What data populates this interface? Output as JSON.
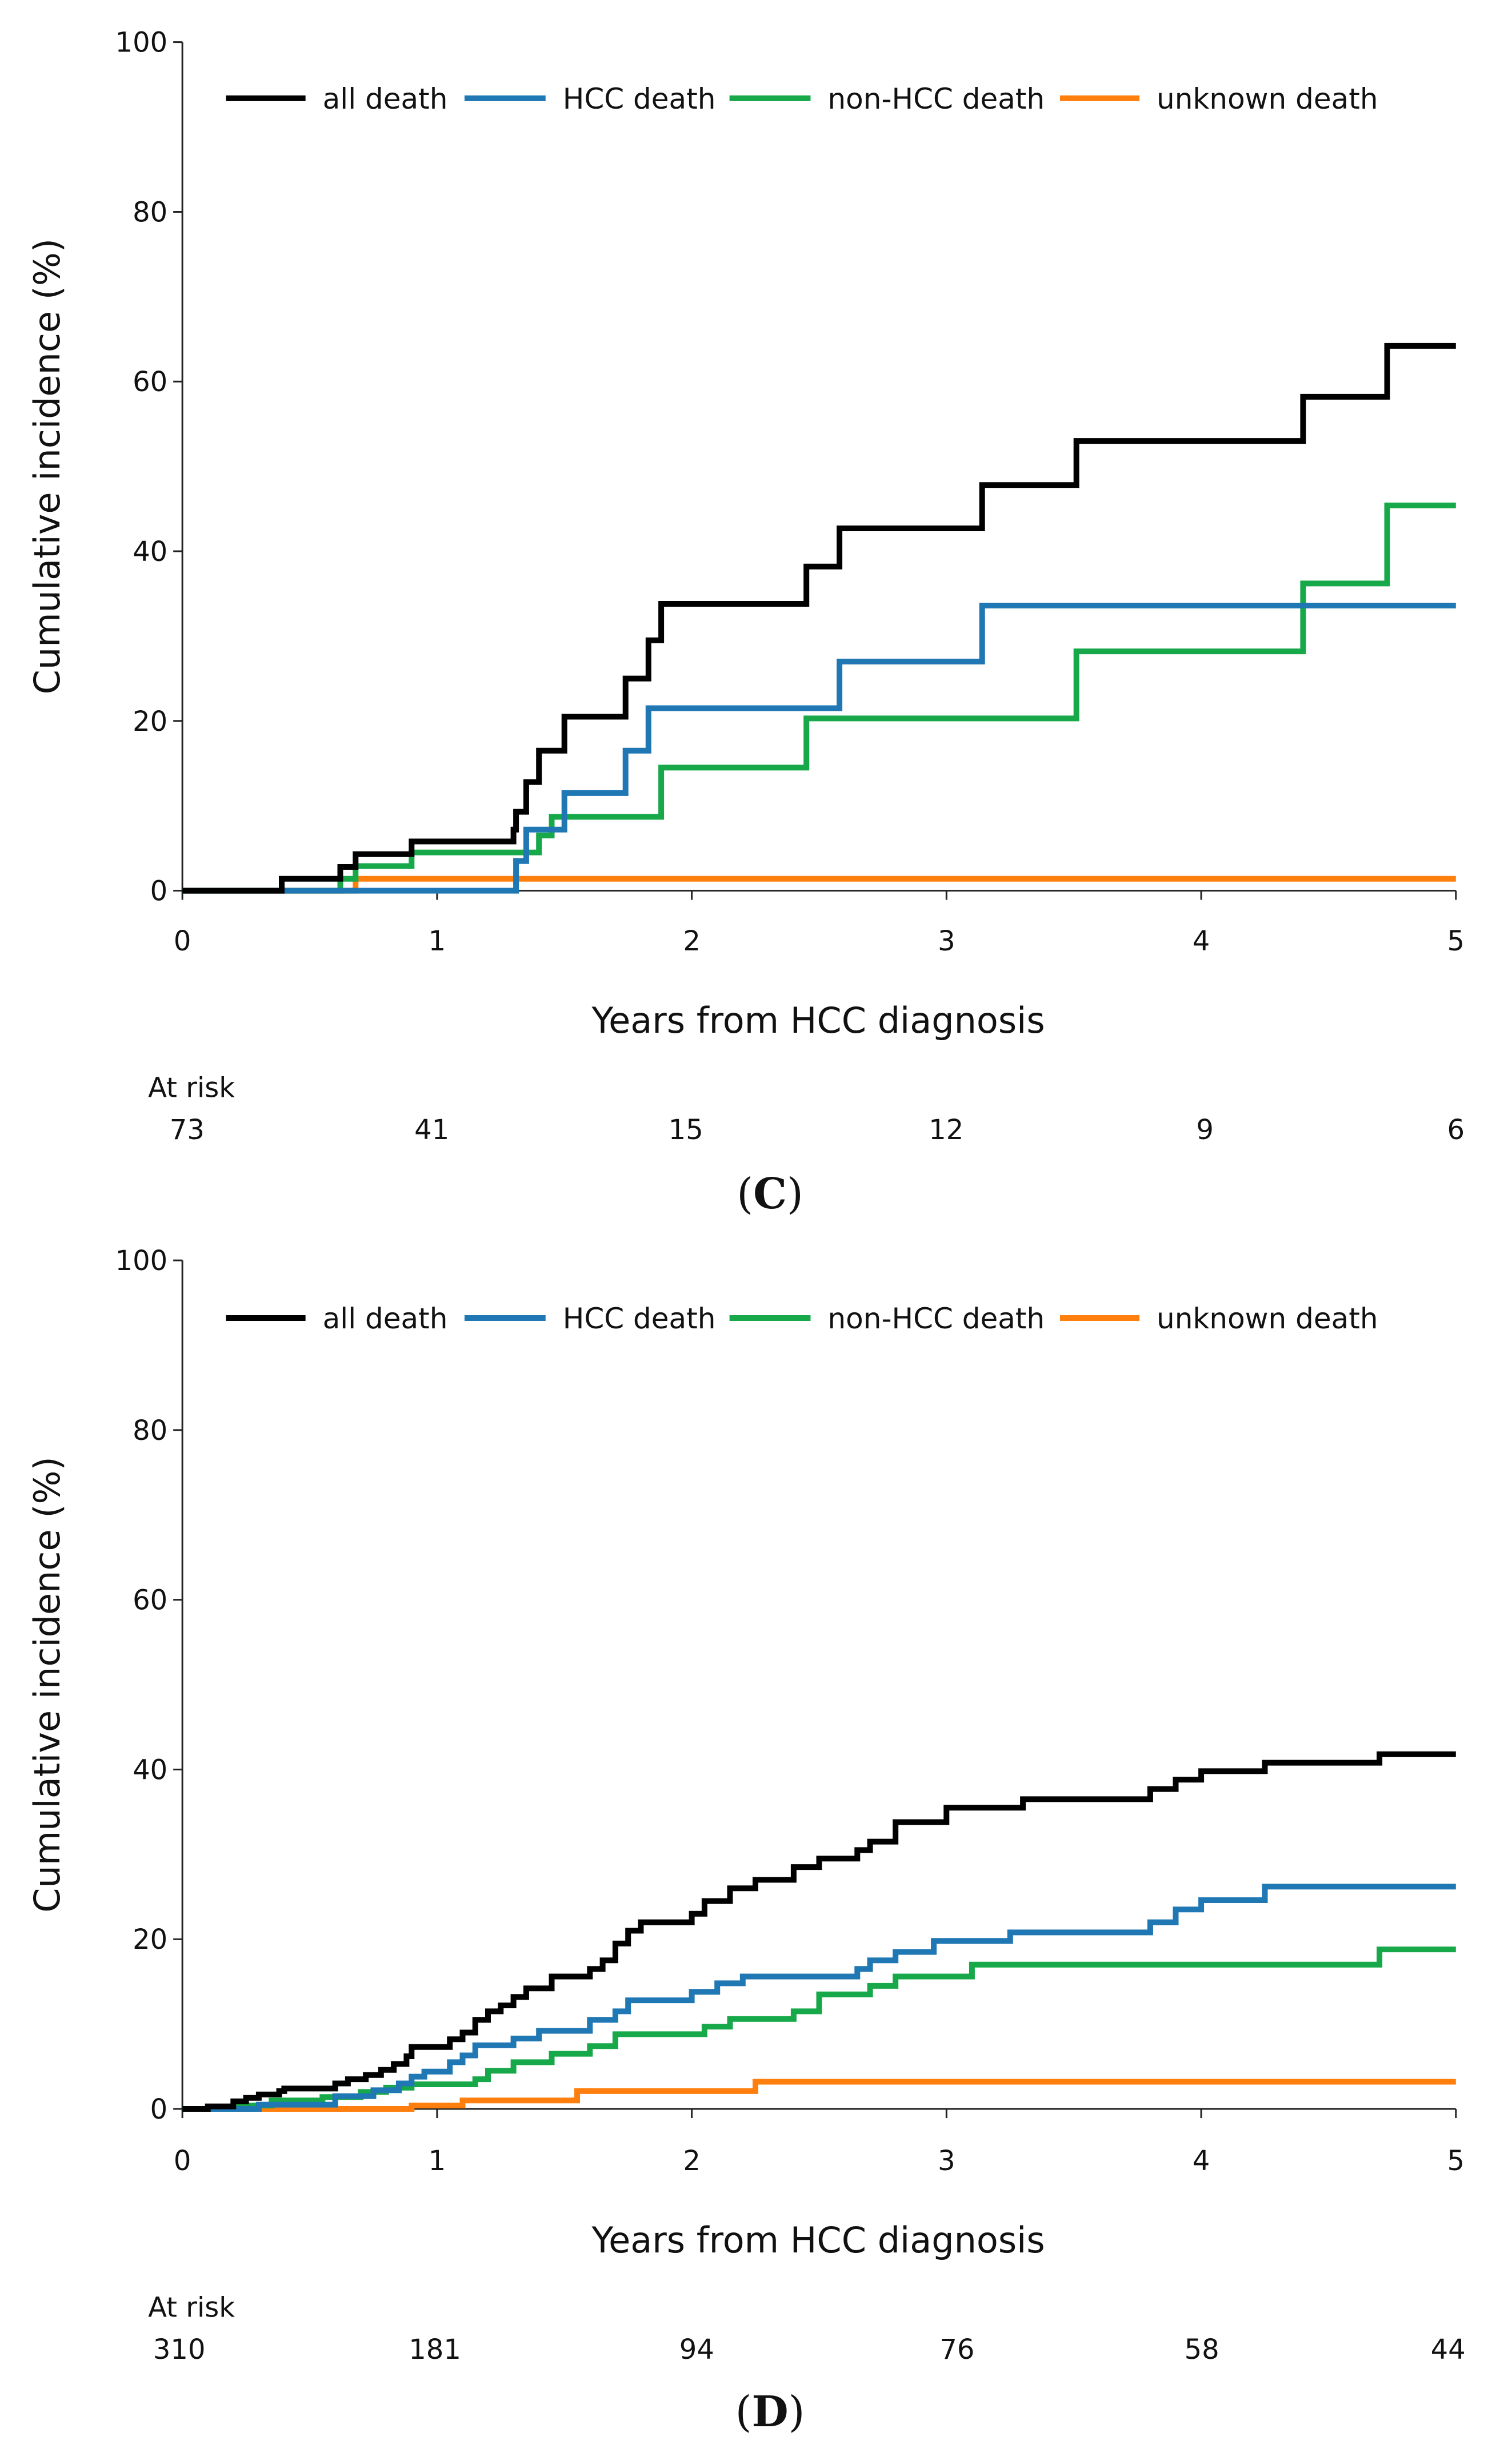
{
  "colors": {
    "all_death": "#000000",
    "hcc_death": "#1f77b4",
    "non_hcc_death": "#17a84a",
    "unknown_death": "#ff7f0e"
  },
  "chart_data": [
    {
      "type": "line",
      "step": true,
      "panel_label": "C",
      "xlabel": "Years from HCC diagnosis",
      "ylabel": "Cumulative incidence (%)",
      "xlim": [
        0,
        5
      ],
      "ylim": [
        0,
        100
      ],
      "xticks": [
        "0",
        "1",
        "2",
        "3",
        "4",
        "5"
      ],
      "yticks": [
        "0",
        "20",
        "40",
        "60",
        "80",
        "100"
      ],
      "legend": [
        "all death",
        "HCC death",
        "non-HCC death",
        "unknown death"
      ],
      "at_risk_title": "At risk",
      "at_risk": [
        "73",
        "41",
        "15",
        "12",
        "9",
        "6"
      ],
      "series": [
        {
          "name": "all death",
          "key": "all_death",
          "points": [
            [
              0,
              0
            ],
            [
              0.39,
              1.4
            ],
            [
              0.62,
              2.8
            ],
            [
              0.68,
              4.3
            ],
            [
              0.9,
              5.8
            ],
            [
              1.3,
              7.2
            ],
            [
              1.31,
              9.3
            ],
            [
              1.35,
              12.8
            ],
            [
              1.4,
              16.5
            ],
            [
              1.5,
              20.5
            ],
            [
              1.74,
              25
            ],
            [
              1.83,
              29.5
            ],
            [
              1.88,
              33.8
            ],
            [
              2.45,
              38.2
            ],
            [
              2.58,
              42.7
            ],
            [
              3.14,
              47.8
            ],
            [
              3.51,
              53
            ],
            [
              4.4,
              58.2
            ],
            [
              4.73,
              64.2
            ],
            [
              5,
              64.2
            ]
          ]
        },
        {
          "name": "HCC death",
          "key": "hcc_death",
          "points": [
            [
              0,
              0
            ],
            [
              1.31,
              3.5
            ],
            [
              1.35,
              7.2
            ],
            [
              1.5,
              11.5
            ],
            [
              1.74,
              16.5
            ],
            [
              1.83,
              21.5
            ],
            [
              2.58,
              27
            ],
            [
              3.14,
              33.6
            ],
            [
              5,
              33.6
            ]
          ]
        },
        {
          "name": "non-HCC death",
          "key": "non_hcc_death",
          "points": [
            [
              0,
              0
            ],
            [
              0.62,
              1.4
            ],
            [
              0.68,
              2.9
            ],
            [
              0.9,
              4.5
            ],
            [
              1.4,
              6.5
            ],
            [
              1.45,
              8.7
            ],
            [
              1.88,
              14.5
            ],
            [
              2.45,
              20.3
            ],
            [
              3.51,
              28.2
            ],
            [
              4.4,
              36.2
            ],
            [
              4.73,
              45.4
            ],
            [
              5,
              45.4
            ]
          ]
        },
        {
          "name": "unknown death",
          "key": "unknown_death",
          "points": [
            [
              0,
              0
            ],
            [
              0.68,
              1.4
            ],
            [
              5,
              1.4
            ]
          ]
        }
      ]
    },
    {
      "type": "line",
      "step": true,
      "panel_label": "D",
      "xlabel": "Years from HCC diagnosis",
      "ylabel": "Cumulative incidence (%)",
      "xlim": [
        0,
        5
      ],
      "ylim": [
        0,
        100
      ],
      "xticks": [
        "0",
        "1",
        "2",
        "3",
        "4",
        "5"
      ],
      "yticks": [
        "0",
        "20",
        "40",
        "60",
        "80",
        "100"
      ],
      "legend": [
        "all death",
        "HCC death",
        "non-HCC death",
        "unknown death"
      ],
      "at_risk_title": "At risk",
      "at_risk": [
        "310",
        "181",
        "94",
        "76",
        "58",
        "44"
      ],
      "series": [
        {
          "name": "all death",
          "key": "all_death",
          "points": [
            [
              0,
              0
            ],
            [
              0.1,
              0.3
            ],
            [
              0.2,
              0.9
            ],
            [
              0.25,
              1.3
            ],
            [
              0.3,
              1.7
            ],
            [
              0.38,
              2.1
            ],
            [
              0.4,
              2.4
            ],
            [
              0.55,
              2.4
            ],
            [
              0.6,
              3.0
            ],
            [
              0.65,
              3.5
            ],
            [
              0.72,
              4.0
            ],
            [
              0.78,
              4.6
            ],
            [
              0.83,
              5.3
            ],
            [
              0.88,
              6.2
            ],
            [
              0.9,
              7.3
            ],
            [
              1.0,
              7.3
            ],
            [
              1.05,
              8.2
            ],
            [
              1.1,
              9.0
            ],
            [
              1.15,
              10.5
            ],
            [
              1.2,
              11.5
            ],
            [
              1.25,
              12.2
            ],
            [
              1.3,
              13.2
            ],
            [
              1.35,
              14.2
            ],
            [
              1.45,
              15.6
            ],
            [
              1.6,
              16.5
            ],
            [
              1.65,
              17.5
            ],
            [
              1.7,
              19.5
            ],
            [
              1.75,
              21.0
            ],
            [
              1.8,
              22.0
            ],
            [
              2.0,
              23.0
            ],
            [
              2.05,
              24.5
            ],
            [
              2.15,
              26.0
            ],
            [
              2.25,
              27.0
            ],
            [
              2.4,
              28.5
            ],
            [
              2.5,
              29.5
            ],
            [
              2.65,
              30.5
            ],
            [
              2.7,
              31.5
            ],
            [
              2.8,
              33.8
            ],
            [
              3.0,
              35.5
            ],
            [
              3.3,
              36.5
            ],
            [
              3.8,
              37.7
            ],
            [
              3.9,
              38.8
            ],
            [
              4.0,
              39.8
            ],
            [
              4.25,
              40.8
            ],
            [
              4.7,
              41.8
            ],
            [
              5.0,
              41.8
            ]
          ]
        },
        {
          "name": "HCC death",
          "key": "hcc_death",
          "points": [
            [
              0,
              0
            ],
            [
              0.3,
              0.5
            ],
            [
              0.6,
              1.5
            ],
            [
              0.75,
              2.2
            ],
            [
              0.85,
              3.0
            ],
            [
              0.9,
              3.8
            ],
            [
              0.95,
              4.4
            ],
            [
              1.05,
              5.5
            ],
            [
              1.1,
              6.3
            ],
            [
              1.15,
              7.5
            ],
            [
              1.3,
              8.3
            ],
            [
              1.4,
              9.2
            ],
            [
              1.6,
              10.5
            ],
            [
              1.7,
              11.5
            ],
            [
              1.75,
              12.8
            ],
            [
              2.0,
              13.8
            ],
            [
              2.1,
              14.8
            ],
            [
              2.2,
              15.6
            ],
            [
              2.65,
              16.5
            ],
            [
              2.7,
              17.5
            ],
            [
              2.8,
              18.5
            ],
            [
              2.95,
              19.8
            ],
            [
              3.25,
              20.8
            ],
            [
              3.8,
              22.0
            ],
            [
              3.9,
              23.5
            ],
            [
              4.0,
              24.6
            ],
            [
              4.25,
              26.2
            ],
            [
              5.0,
              26.2
            ]
          ]
        },
        {
          "name": "non-HCC death",
          "key": "non_hcc_death",
          "points": [
            [
              0,
              0
            ],
            [
              0.2,
              0.4
            ],
            [
              0.35,
              1.0
            ],
            [
              0.55,
              1.4
            ],
            [
              0.7,
              2.0
            ],
            [
              0.8,
              2.5
            ],
            [
              0.9,
              2.9
            ],
            [
              1.15,
              3.5
            ],
            [
              1.2,
              4.5
            ],
            [
              1.3,
              5.5
            ],
            [
              1.45,
              6.5
            ],
            [
              1.6,
              7.4
            ],
            [
              1.7,
              8.8
            ],
            [
              2.05,
              9.7
            ],
            [
              2.15,
              10.6
            ],
            [
              2.4,
              11.5
            ],
            [
              2.5,
              13.5
            ],
            [
              2.7,
              14.5
            ],
            [
              2.8,
              15.6
            ],
            [
              3.1,
              17.0
            ],
            [
              4.7,
              18.8
            ],
            [
              5.0,
              18.8
            ]
          ]
        },
        {
          "name": "unknown death",
          "key": "unknown_death",
          "points": [
            [
              0,
              0
            ],
            [
              0.9,
              0.4
            ],
            [
              1.1,
              1.0
            ],
            [
              1.55,
              2.1
            ],
            [
              2.25,
              3.2
            ],
            [
              5.0,
              3.2
            ]
          ]
        }
      ]
    }
  ]
}
